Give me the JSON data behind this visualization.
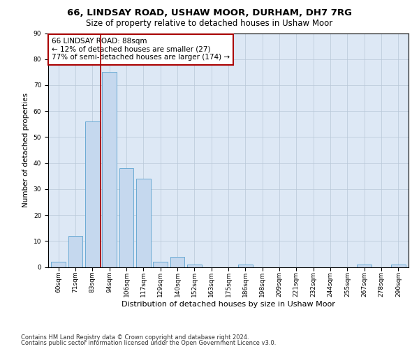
{
  "title1": "66, LINDSAY ROAD, USHAW MOOR, DURHAM, DH7 7RG",
  "title2": "Size of property relative to detached houses in Ushaw Moor",
  "xlabel": "Distribution of detached houses by size in Ushaw Moor",
  "ylabel": "Number of detached properties",
  "categories": [
    "60sqm",
    "71sqm",
    "83sqm",
    "94sqm",
    "106sqm",
    "117sqm",
    "129sqm",
    "140sqm",
    "152sqm",
    "163sqm",
    "175sqm",
    "186sqm",
    "198sqm",
    "209sqm",
    "221sqm",
    "232sqm",
    "244sqm",
    "255sqm",
    "267sqm",
    "278sqm",
    "290sqm"
  ],
  "values": [
    2,
    12,
    56,
    75,
    38,
    34,
    2,
    4,
    1,
    0,
    0,
    1,
    0,
    0,
    0,
    0,
    0,
    0,
    1,
    0,
    1
  ],
  "bar_color": "#c5d8ee",
  "bar_edge_color": "#6aaad4",
  "vline_x": 2.5,
  "vline_color": "#aa0000",
  "annotation_text": "66 LINDSAY ROAD: 88sqm\n← 12% of detached houses are smaller (27)\n77% of semi-detached houses are larger (174) →",
  "annotation_box_color": "#ffffff",
  "annotation_box_edge": "#aa0000",
  "ylim": [
    0,
    90
  ],
  "yticks": [
    0,
    10,
    20,
    30,
    40,
    50,
    60,
    70,
    80,
    90
  ],
  "footer1": "Contains HM Land Registry data © Crown copyright and database right 2024.",
  "footer2": "Contains public sector information licensed under the Open Government Licence v3.0.",
  "bg_color": "#ffffff",
  "plot_bg_color": "#dde8f5",
  "grid_color": "#b8c8d8",
  "title1_fontsize": 9.5,
  "title2_fontsize": 8.5,
  "xlabel_fontsize": 8,
  "ylabel_fontsize": 7.5,
  "tick_fontsize": 6.5,
  "annotation_fontsize": 7.5,
  "footer_fontsize": 6
}
